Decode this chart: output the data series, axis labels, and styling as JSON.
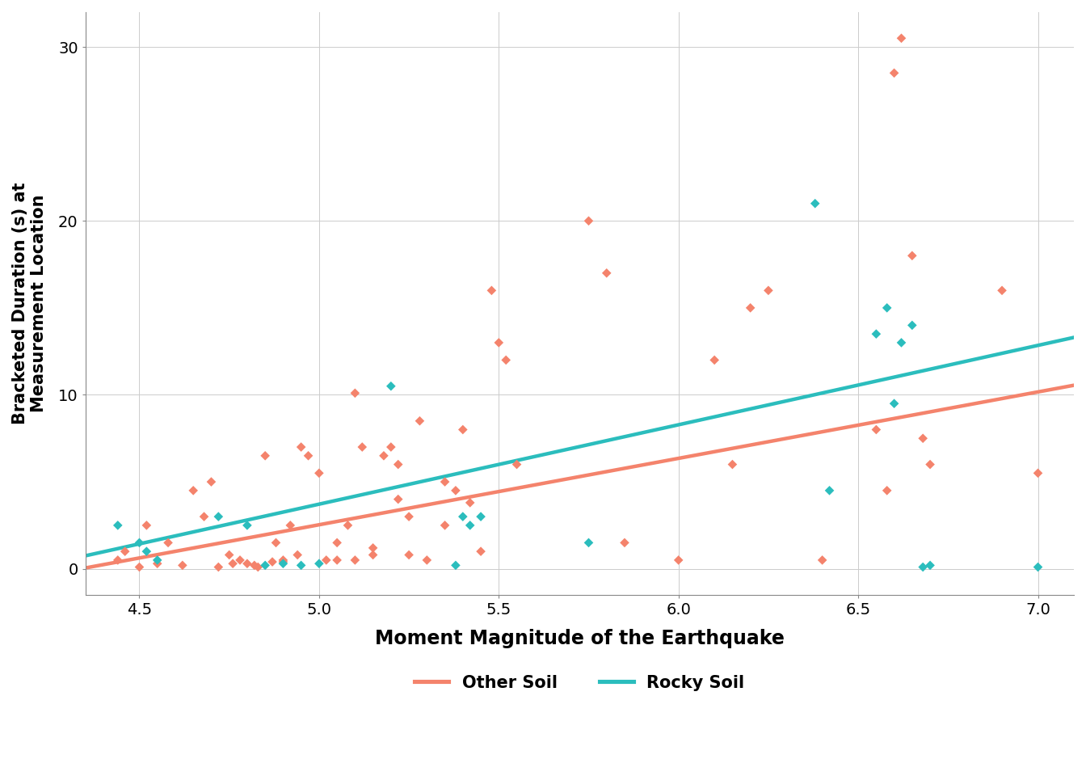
{
  "xlabel": "Moment Magnitude of the Earthquake",
  "ylabel": "Bracketed Duration (s) at\nMeasurement Location",
  "xlim": [
    4.35,
    7.1
  ],
  "ylim": [
    -1.5,
    32
  ],
  "xticks": [
    4.5,
    5.0,
    5.5,
    6.0,
    6.5,
    7.0
  ],
  "yticks": [
    0,
    10,
    20,
    30
  ],
  "other_soil_color": "#F4836C",
  "rocky_soil_color": "#2BBDBD",
  "other_soil_x": [
    4.44,
    4.46,
    4.5,
    4.52,
    4.55,
    4.58,
    4.62,
    4.65,
    4.68,
    4.7,
    4.72,
    4.75,
    4.76,
    4.78,
    4.8,
    4.82,
    4.83,
    4.85,
    4.87,
    4.88,
    4.9,
    4.9,
    4.92,
    4.94,
    4.95,
    4.97,
    5.0,
    5.02,
    5.05,
    5.05,
    5.08,
    5.1,
    5.1,
    5.12,
    5.15,
    5.15,
    5.18,
    5.2,
    5.22,
    5.22,
    5.25,
    5.25,
    5.28,
    5.3,
    5.35,
    5.35,
    5.38,
    5.4,
    5.42,
    5.45,
    5.48,
    5.5,
    5.52,
    5.55,
    5.75,
    5.8,
    5.85,
    6.0,
    6.1,
    6.15,
    6.2,
    6.25,
    6.4,
    6.55,
    6.58,
    6.6,
    6.62,
    6.65,
    6.68,
    6.7,
    6.9,
    7.0
  ],
  "other_soil_y": [
    0.5,
    1.0,
    0.1,
    2.5,
    0.3,
    1.5,
    0.2,
    4.5,
    3.0,
    5.0,
    0.1,
    0.8,
    0.3,
    0.5,
    0.3,
    0.2,
    0.1,
    6.5,
    0.4,
    1.5,
    0.5,
    0.4,
    2.5,
    0.8,
    7.0,
    6.5,
    5.5,
    0.5,
    0.5,
    1.5,
    2.5,
    0.5,
    10.1,
    7.0,
    1.2,
    0.8,
    6.5,
    7.0,
    6.0,
    4.0,
    3.0,
    0.8,
    8.5,
    0.5,
    2.5,
    5.0,
    4.5,
    8.0,
    3.8,
    1.0,
    16.0,
    13.0,
    12.0,
    6.0,
    20.0,
    17.0,
    1.5,
    0.5,
    12.0,
    6.0,
    15.0,
    16.0,
    0.5,
    8.0,
    4.5,
    28.5,
    30.5,
    18.0,
    7.5,
    6.0,
    16.0,
    5.5
  ],
  "rocky_soil_x": [
    4.44,
    4.5,
    4.52,
    4.55,
    4.72,
    4.8,
    4.85,
    4.9,
    4.95,
    5.0,
    5.2,
    5.38,
    5.4,
    5.42,
    5.45,
    5.75,
    6.38,
    6.42,
    6.55,
    6.58,
    6.6,
    6.62,
    6.65,
    6.68,
    6.7,
    7.0
  ],
  "rocky_soil_y": [
    2.5,
    1.5,
    1.0,
    0.5,
    3.0,
    2.5,
    0.2,
    0.3,
    0.2,
    0.3,
    10.5,
    0.2,
    3.0,
    2.5,
    3.0,
    1.5,
    21.0,
    4.5,
    13.5,
    15.0,
    9.5,
    13.0,
    14.0,
    0.1,
    0.2,
    0.1
  ],
  "other_line_x": [
    4.35,
    7.1
  ],
  "other_line_y": [
    0.05,
    10.55
  ],
  "rocky_line_x": [
    4.35,
    7.1
  ],
  "rocky_line_y": [
    0.75,
    13.3
  ],
  "bg_color": "#FFFFFF",
  "plot_bg_color": "#FFFFFF",
  "grid_color": "#CCCCCC",
  "spine_color": "#888888",
  "marker_size": 35,
  "line_width": 3.2,
  "xlabel_fontsize": 17,
  "ylabel_fontsize": 15,
  "tick_fontsize": 14,
  "legend_fontsize": 15
}
